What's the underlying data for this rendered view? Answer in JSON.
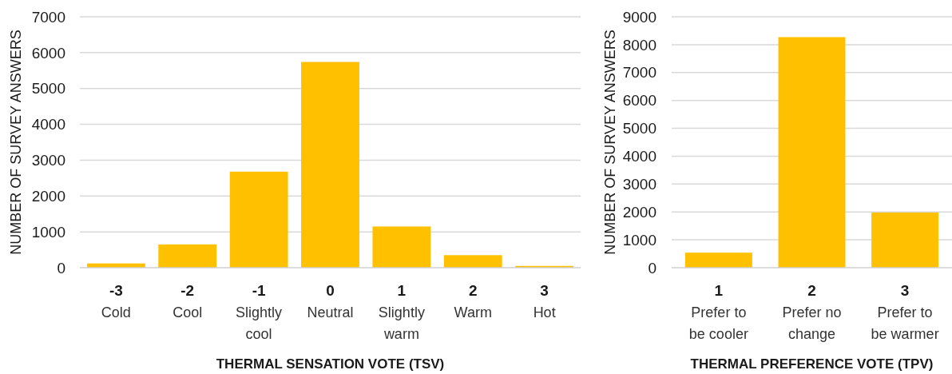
{
  "chart_data": [
    {
      "type": "bar",
      "xlabel": "THERMAL SENSATION VOTE (TSV)",
      "ylabel": "NUMBER OF SURVEY ANSWERS",
      "categories": [
        "-3\nCold",
        "-2\nCool",
        "-1\nSlightly\ncool",
        "0\nNeutral",
        "1\nSlightly\nwarm",
        "2\nWarm",
        "3\nHot"
      ],
      "values": [
        120,
        650,
        2680,
        5740,
        1150,
        350,
        50
      ],
      "color": "#ffc000",
      "ylim": [
        0,
        7000
      ],
      "yticks": [
        0,
        1000,
        2000,
        3000,
        4000,
        5000,
        6000,
        7000
      ],
      "grid": "y"
    },
    {
      "type": "bar",
      "xlabel": "THERMAL PREFERENCE VOTE (TPV)",
      "ylabel": "NUMBER OF SURVEY ANSWERS",
      "categories": [
        "1\nPrefer to\nbe cooler",
        "2\nPrefer no\nchange",
        "3\nPrefer to\nbe warmer"
      ],
      "values": [
        540,
        8270,
        1980
      ],
      "color": "#ffc000",
      "ylim": [
        0,
        9000
      ],
      "yticks": [
        0,
        1000,
        2000,
        3000,
        4000,
        5000,
        6000,
        7000,
        8000,
        9000
      ],
      "grid": "y"
    }
  ]
}
